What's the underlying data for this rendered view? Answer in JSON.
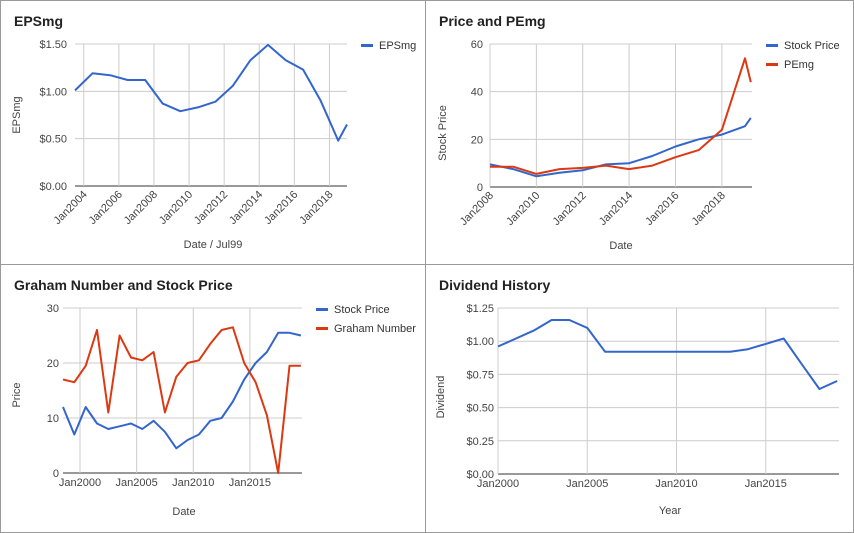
{
  "chart_data": [
    {
      "type": "line",
      "title": "EPSmg",
      "xlabel": "Date / Jul99",
      "ylabel": "EPSmg",
      "ylim": [
        0,
        1.5
      ],
      "y_ticks": [
        "$0.00",
        "$0.50",
        "$1.00",
        "$1.50"
      ],
      "x_ticks": [
        "Jan2004",
        "Jan2006",
        "Jan2008",
        "Jan2010",
        "Jan2012",
        "Jan2014",
        "Jan2016",
        "Jan2018"
      ],
      "grid": true,
      "legend": "top-right",
      "series": [
        {
          "name": "EPSmg",
          "color": "#3366cc",
          "x": [
            "2003-07",
            "2004-07",
            "2005-07",
            "2006-07",
            "2007-07",
            "2008-07",
            "2009-07",
            "2010-07",
            "2011-07",
            "2012-07",
            "2013-07",
            "2014-07",
            "2015-07",
            "2016-07",
            "2017-07",
            "2018-07",
            "2019-01"
          ],
          "values": [
            1.01,
            1.19,
            1.17,
            1.12,
            1.12,
            0.87,
            0.79,
            0.83,
            0.89,
            1.06,
            1.33,
            1.49,
            1.33,
            1.23,
            0.9,
            0.48,
            0.65
          ]
        }
      ]
    },
    {
      "type": "line",
      "title": "Price and PEmg",
      "xlabel": "Date",
      "ylabel": "Stock Price",
      "ylim": [
        0,
        60
      ],
      "y_ticks": [
        "0",
        "20",
        "40",
        "60"
      ],
      "x_ticks": [
        "Jan2008",
        "Jan2010",
        "Jan2012",
        "Jan2014",
        "Jan2016",
        "Jan2018"
      ],
      "grid": true,
      "legend": "top-right",
      "series": [
        {
          "name": "Stock Price",
          "color": "#3366cc",
          "x": [
            "2008-01",
            "2009-01",
            "2010-01",
            "2011-01",
            "2012-01",
            "2013-01",
            "2014-01",
            "2015-01",
            "2016-01",
            "2017-01",
            "2018-01",
            "2019-01",
            "2019-04"
          ],
          "values": [
            9.5,
            7.5,
            4.5,
            6,
            7,
            9.5,
            10,
            13,
            17,
            20,
            22,
            25.5,
            29
          ]
        },
        {
          "name": "PEmg",
          "color": "#dc3912",
          "x": [
            "2008-01",
            "2009-01",
            "2010-01",
            "2011-01",
            "2012-01",
            "2013-01",
            "2014-01",
            "2015-01",
            "2016-01",
            "2017-01",
            "2018-01",
            "2019-01",
            "2019-04"
          ],
          "values": [
            8.5,
            8.5,
            5.5,
            7.5,
            8,
            9,
            7.5,
            9,
            12.5,
            15.5,
            24,
            54,
            44
          ]
        }
      ]
    },
    {
      "type": "line",
      "title": "Graham Number and Stock Price",
      "xlabel": "Date",
      "ylabel": "Price",
      "ylim": [
        0,
        30
      ],
      "y_ticks": [
        "0",
        "10",
        "20",
        "30"
      ],
      "x_ticks": [
        "Jan2000",
        "Jan2005",
        "Jan2010",
        "Jan2015"
      ],
      "grid": true,
      "legend": "top-right",
      "series": [
        {
          "name": "Stock Price",
          "color": "#3366cc",
          "x": [
            "1998-07",
            "1999-07",
            "2000-07",
            "2001-07",
            "2002-07",
            "2003-07",
            "2004-07",
            "2005-07",
            "2006-07",
            "2007-07",
            "2008-07",
            "2009-07",
            "2010-07",
            "2011-07",
            "2012-07",
            "2013-07",
            "2014-07",
            "2015-07",
            "2016-07",
            "2017-07",
            "2018-07",
            "2019-07"
          ],
          "values": [
            12,
            7,
            12,
            9,
            8,
            8.5,
            9,
            8,
            9.5,
            7.5,
            4.5,
            6,
            7,
            9.5,
            10,
            13,
            17,
            20,
            22,
            25.5,
            25.5,
            25
          ]
        },
        {
          "name": "Graham Number",
          "color": "#dc3912",
          "x": [
            "1998-07",
            "1999-07",
            "2000-07",
            "2001-07",
            "2002-07",
            "2003-07",
            "2004-07",
            "2005-07",
            "2006-07",
            "2007-07",
            "2008-07",
            "2009-07",
            "2010-07",
            "2011-07",
            "2012-07",
            "2013-07",
            "2014-07",
            "2015-07",
            "2016-07",
            "2017-07",
            "2018-07",
            "2019-07"
          ],
          "values": [
            17,
            16.5,
            19.5,
            26,
            11,
            25,
            21,
            20.5,
            22,
            11,
            17.5,
            20,
            20.5,
            23.5,
            26,
            26.5,
            20,
            16.5,
            10.5,
            0,
            19.5,
            19.5
          ]
        }
      ]
    },
    {
      "type": "line",
      "title": "Dividend History",
      "xlabel": "Year",
      "ylabel": "Dividend",
      "ylim": [
        0,
        1.25
      ],
      "y_ticks": [
        "$0.00",
        "$0.25",
        "$0.50",
        "$0.75",
        "$1.00",
        "$1.25"
      ],
      "x_ticks": [
        "Jan2000",
        "Jan2005",
        "Jan2010",
        "Jan2015"
      ],
      "grid": true,
      "series": [
        {
          "name": "Dividend",
          "color": "#3366cc",
          "x": [
            "2000-01",
            "2002-01",
            "2003-01",
            "2004-01",
            "2005-01",
            "2006-01",
            "2008-01",
            "2010-01",
            "2012-01",
            "2013-01",
            "2014-01",
            "2015-01",
            "2016-01",
            "2017-01",
            "2018-01",
            "2019-01"
          ],
          "values": [
            0.96,
            1.08,
            1.16,
            1.16,
            1.1,
            0.92,
            0.92,
            0.92,
            0.92,
            0.92,
            0.94,
            0.98,
            1.02,
            0.83,
            0.64,
            0.7
          ]
        }
      ]
    }
  ]
}
